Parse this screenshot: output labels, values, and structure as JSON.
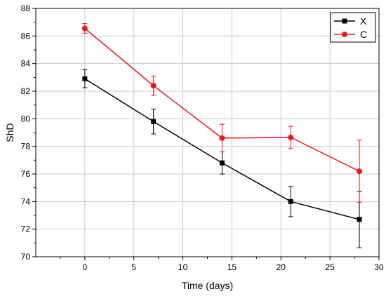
{
  "chart_data": {
    "type": "line",
    "xlabel": "Time (days)",
    "ylabel": "ShD",
    "xlim": [
      -5,
      30
    ],
    "ylim": [
      70,
      88
    ],
    "xticks": [
      0,
      5,
      10,
      15,
      20,
      25,
      30
    ],
    "yticks": [
      70,
      72,
      74,
      76,
      78,
      80,
      82,
      84,
      86,
      88
    ],
    "grid": true,
    "legend_position": "top-right",
    "x": [
      0,
      7,
      14,
      21,
      28
    ],
    "series": [
      {
        "name": "X",
        "color": "#000000",
        "marker": "square",
        "values": [
          82.9,
          79.8,
          76.8,
          74.0,
          72.7
        ],
        "error": [
          0.65,
          0.9,
          0.8,
          1.1,
          2.05
        ]
      },
      {
        "name": "C",
        "color": "#e8191c",
        "marker": "circle",
        "values": [
          86.55,
          82.4,
          78.6,
          78.65,
          76.2
        ],
        "error": [
          0.35,
          0.7,
          1.0,
          0.8,
          2.25
        ]
      }
    ]
  }
}
